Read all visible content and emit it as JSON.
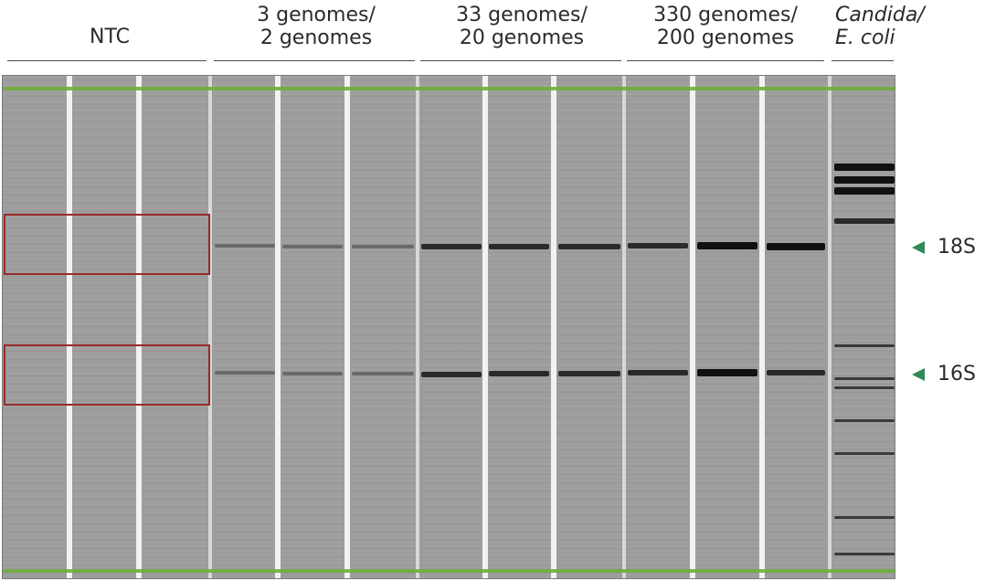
{
  "headers": {
    "ntc": "NTC",
    "g3_line1": "3 genomes/",
    "g3_line2": "2 genomes",
    "g33_line1": "33 genomes/",
    "g33_line2": "20 genomes",
    "g330_line1": "330 genomes/",
    "g330_line2": "200 genomes",
    "ctrl_line1": "Candida/",
    "ctrl_line2": "E. coli"
  },
  "labels": {
    "s18": "18S",
    "s16": "16S"
  },
  "colors": {
    "marker": "#6fae3a",
    "highlight_box": "#9a2a2a",
    "arrow": "#2f8a57"
  }
}
